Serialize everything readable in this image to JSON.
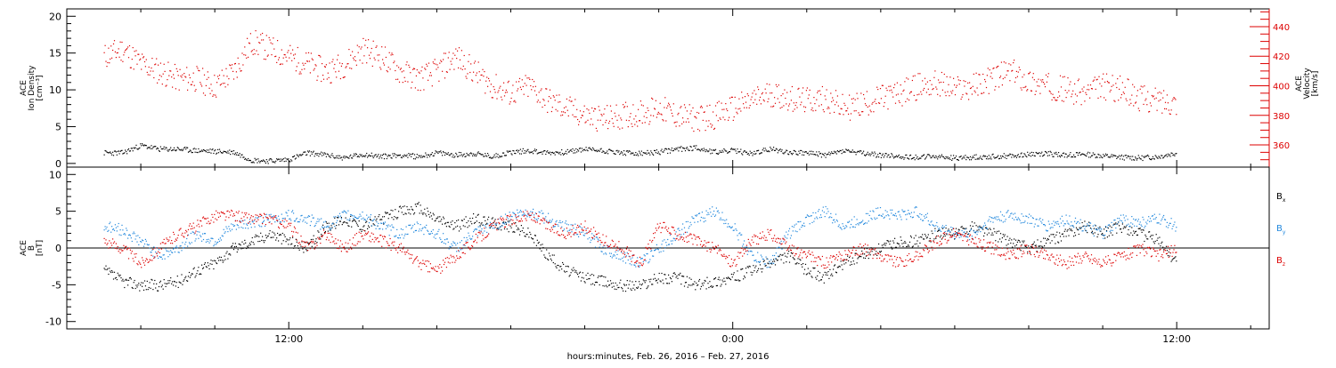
{
  "page": {
    "xlabel": "hours:minutes, Feb. 26, 2016 – Feb. 27, 2016"
  },
  "chart_data": [
    {
      "type": "scatter",
      "panel": "top",
      "left_axis": {
        "label_lines": [
          "ACE",
          "Ion Density",
          "[cm⁻³]"
        ],
        "range": [
          -0.5,
          21
        ],
        "ticks": [
          0,
          5,
          10,
          15,
          20
        ],
        "tick_labels": [
          "0",
          "5",
          "10",
          "15",
          "20"
        ],
        "color": "#000000"
      },
      "right_axis": {
        "label_lines": [
          "ACE",
          "Velocity",
          "[km/s]"
        ],
        "range": [
          345,
          452
        ],
        "ticks": [
          360,
          380,
          400,
          420,
          440
        ],
        "tick_labels": [
          "360",
          "380",
          "400",
          "420",
          "440"
        ],
        "color": "#dd0000"
      },
      "series": [
        {
          "axis": "left",
          "color": "#000000",
          "x_hours": [
            7,
            7.5,
            8,
            8.5,
            9,
            9.5,
            10,
            10.5,
            11,
            11.5,
            12,
            12.5,
            13,
            13.5,
            14,
            14.5,
            15,
            15.5,
            16,
            16.5,
            17,
            17.5,
            18,
            18.5,
            19,
            19.5,
            20,
            20.5,
            21,
            21.5,
            22,
            22.5,
            23,
            23.5,
            24,
            24.5,
            25,
            25.5,
            26,
            26.5,
            27,
            27.5,
            28,
            28.5,
            29,
            29.5,
            30,
            30.5,
            31,
            31.5,
            32,
            32.5,
            33,
            33.5,
            34,
            34.5,
            35,
            35.5,
            36
          ],
          "y": [
            1.5,
            1.5,
            2.5,
            2.0,
            2.0,
            1.8,
            1.7,
            1.6,
            0.5,
            0.4,
            0.6,
            1.5,
            1.2,
            0.8,
            1.3,
            1.0,
            1.2,
            1.0,
            1.5,
            1.2,
            1.4,
            1.0,
            1.6,
            1.8,
            1.5,
            1.6,
            2.0,
            1.8,
            1.5,
            1.4,
            1.6,
            2.0,
            2.2,
            1.6,
            1.8,
            1.4,
            2.0,
            1.6,
            1.5,
            1.2,
            1.8,
            1.4,
            1.2,
            1.0,
            0.9,
            1.0,
            0.8,
            0.9,
            1.0,
            1.1,
            1.3,
            1.4,
            1.2,
            1.3,
            1.1,
            0.9,
            0.8,
            1.0,
            1.5
          ]
        },
        {
          "axis": "right",
          "color": "#dd0000",
          "x_hours": [
            7,
            7.5,
            8,
            8.5,
            9,
            9.5,
            10,
            10.5,
            11,
            11.5,
            12,
            12.5,
            13,
            13.5,
            14,
            14.5,
            15,
            15.5,
            16,
            16.5,
            17,
            17.5,
            18,
            18.5,
            19,
            19.5,
            20,
            20.5,
            21,
            21.5,
            22,
            22.5,
            23,
            23.5,
            24,
            24.5,
            25,
            25.5,
            26,
            26.5,
            27,
            27.5,
            28,
            28.5,
            29,
            29.5,
            30,
            30.5,
            31,
            31.5,
            32,
            32.5,
            33,
            33.5,
            34,
            34.5,
            35,
            35.5,
            36
          ],
          "y": [
            420,
            425,
            415,
            410,
            405,
            405,
            400,
            410,
            430,
            425,
            420,
            415,
            410,
            415,
            425,
            420,
            410,
            405,
            410,
            420,
            410,
            400,
            395,
            400,
            390,
            385,
            380,
            378,
            380,
            382,
            385,
            380,
            378,
            380,
            385,
            390,
            395,
            392,
            390,
            392,
            385,
            388,
            392,
            395,
            400,
            402,
            398,
            400,
            405,
            410,
            403,
            400,
            398,
            395,
            400,
            398,
            392,
            390,
            390
          ]
        }
      ]
    },
    {
      "type": "scatter",
      "panel": "bottom",
      "left_axis": {
        "label_lines": [
          "ACE",
          "B",
          "[nT]"
        ],
        "range": [
          -11,
          11
        ],
        "ticks": [
          -10,
          -5,
          0,
          5,
          10
        ],
        "tick_labels": [
          "-10",
          "-5",
          "0",
          "5",
          "10"
        ],
        "color": "#000000"
      },
      "legend": [
        {
          "label": "B",
          "subscript": "x",
          "color": "#000000"
        },
        {
          "label": "B",
          "subscript": "y",
          "color": "#2288dd"
        },
        {
          "label": "B",
          "subscript": "z",
          "color": "#dd0000"
        }
      ],
      "series": [
        {
          "name": "Bx",
          "color": "#000000",
          "x_hours": [
            7,
            7.5,
            8,
            8.5,
            9,
            9.5,
            10,
            10.5,
            11,
            11.5,
            12,
            12.5,
            13,
            13.5,
            14,
            14.5,
            15,
            15.5,
            16,
            16.5,
            17,
            17.5,
            18,
            18.5,
            19,
            19.5,
            20,
            20.5,
            21,
            21.5,
            22,
            22.5,
            23,
            23.5,
            24,
            24.5,
            25,
            25.5,
            26,
            26.5,
            27,
            27.5,
            28,
            28.5,
            29,
            29.5,
            30,
            30.5,
            31,
            31.5,
            32,
            32.5,
            33,
            33.5,
            34,
            34.5,
            35,
            35.5,
            36
          ],
          "y": [
            -3,
            -4.5,
            -5,
            -5,
            -4.5,
            -3,
            -2,
            0,
            1,
            2,
            1,
            0,
            3,
            4,
            3,
            4,
            5,
            5.5,
            4,
            3,
            4,
            3.5,
            3,
            2,
            -1,
            -3,
            -4,
            -4.5,
            -5,
            -5,
            -4,
            -4,
            -5,
            -4.5,
            -4,
            -3,
            -2,
            -1,
            -3,
            -4,
            -2,
            -1,
            0,
            1,
            1,
            2,
            2,
            3,
            2,
            1,
            0,
            1,
            2,
            3,
            2,
            3,
            2,
            1,
            -2
          ]
        },
        {
          "name": "By",
          "color": "#2288dd",
          "x_hours": [
            7,
            7.5,
            8,
            8.5,
            9,
            9.5,
            10,
            10.5,
            11,
            11.5,
            12,
            12.5,
            13,
            13.5,
            14,
            14.5,
            15,
            15.5,
            16,
            16.5,
            17,
            17.5,
            18,
            18.5,
            19,
            19.5,
            20,
            20.5,
            21,
            21.5,
            22,
            22.5,
            23,
            23.5,
            24,
            24.5,
            25,
            25.5,
            26,
            26.5,
            27,
            27.5,
            28,
            28.5,
            29,
            29.5,
            30,
            30.5,
            31,
            31.5,
            32,
            32.5,
            33,
            33.5,
            34,
            34.5,
            35,
            35.5,
            36
          ],
          "y": [
            3,
            2.5,
            1,
            -1,
            0,
            2,
            1,
            3,
            3.5,
            4,
            4.5,
            4,
            3,
            4.5,
            4.5,
            3,
            2,
            3,
            2,
            0,
            2,
            3,
            4.5,
            5,
            4,
            3,
            2,
            0,
            -1,
            -2,
            0,
            2,
            4,
            5,
            3,
            -1,
            -2,
            2,
            4,
            5,
            3,
            4,
            5,
            4.5,
            5,
            3,
            2,
            2,
            4,
            4.5,
            4,
            3,
            4,
            3,
            2,
            4,
            3.5,
            4,
            3
          ]
        },
        {
          "name": "Bz",
          "color": "#dd0000",
          "x_hours": [
            7,
            7.5,
            8,
            8.5,
            9,
            9.5,
            10,
            10.5,
            11,
            11.5,
            12,
            12.5,
            13,
            13.5,
            14,
            14.5,
            15,
            15.5,
            16,
            16.5,
            17,
            17.5,
            18,
            18.5,
            19,
            19.5,
            20,
            20.5,
            21,
            21.5,
            22,
            22.5,
            23,
            23.5,
            24,
            24.5,
            25,
            25.5,
            26,
            26.5,
            27,
            27.5,
            28,
            28.5,
            29,
            29.5,
            30,
            30.5,
            31,
            31.5,
            32,
            32.5,
            33,
            33.5,
            34,
            34.5,
            35,
            35.5,
            36
          ],
          "y": [
            1,
            0,
            -2,
            0,
            2,
            3,
            4.5,
            4.5,
            4,
            4,
            3,
            0,
            2,
            0,
            2,
            1,
            0,
            -2,
            -3,
            -1,
            1,
            3,
            4,
            4.5,
            3,
            2,
            3,
            1,
            0,
            -2,
            3,
            2,
            1,
            0,
            -2,
            1,
            2,
            0,
            -1,
            -2,
            -1,
            0,
            -1,
            -2,
            -1,
            1,
            2,
            1,
            0,
            -1,
            0,
            -1,
            -2,
            -1,
            -2,
            -1,
            0,
            -1,
            0
          ]
        }
      ]
    }
  ],
  "time_axis": {
    "range_hours": [
      6,
      38.5
    ],
    "major_ticks_hours": [
      12,
      24,
      36
    ],
    "major_labels": [
      "12:00",
      "0:00",
      "12:00"
    ],
    "minor_step_hours": 2
  }
}
